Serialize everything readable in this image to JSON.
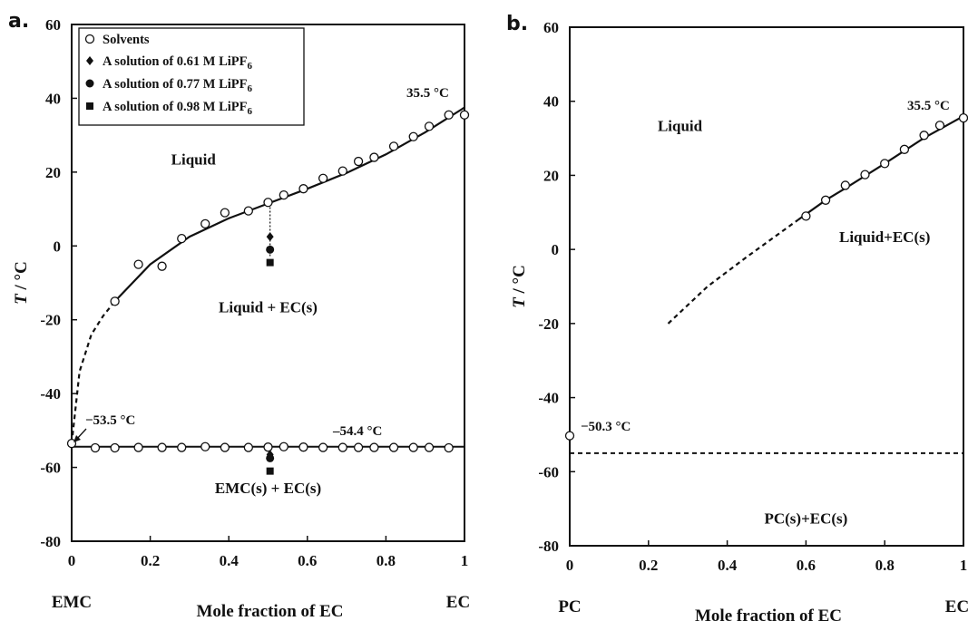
{
  "chart_data": [
    {
      "type": "scatter",
      "panel_label": "a.",
      "ylabel_italic": "T",
      "ylabel_rest": " / °C",
      "xlabel": "Mole fraction of EC",
      "x_end_labels": [
        "EMC",
        "EC"
      ],
      "xlim": [
        0,
        1
      ],
      "ylim": [
        -80,
        60
      ],
      "xticks": [
        "0",
        "0.2",
        "0.4",
        "0.6",
        "0.8",
        "1"
      ],
      "yticks": [
        "-80",
        "-60",
        "-40",
        "-20",
        "0",
        "20",
        "40",
        "60"
      ],
      "legend": {
        "placement": "top-left",
        "entries": [
          {
            "marker": "open-circle",
            "text": "Solvents"
          },
          {
            "marker": "diamond",
            "text": " A solution of 0.61 M LiPF",
            "sub": "6"
          },
          {
            "marker": "filled-circle",
            "text": "A solution of 0.77 M LiPF",
            "sub": "6"
          },
          {
            "marker": "square",
            "text": "A solution of 0.98 M LiPF",
            "sub": "6"
          }
        ]
      },
      "regions": [
        "Liquid",
        "Liquid + EC(s)",
        "EMC(s) + EC(s)"
      ],
      "annotations": [
        "35.5 °C",
        "−53.5 °C",
        "–54.4 °C"
      ],
      "series": [
        {
          "name": "Solvents",
          "marker": "open-circle",
          "liquidus_points": [
            [
              0.11,
              -15
            ],
            [
              0.17,
              -5
            ],
            [
              0.23,
              -5.5
            ],
            [
              0.28,
              2
            ],
            [
              0.34,
              6
            ],
            [
              0.39,
              9
            ],
            [
              0.45,
              9.5
            ],
            [
              0.5,
              11.8
            ],
            [
              0.54,
              13.8
            ],
            [
              0.59,
              15.5
            ],
            [
              0.64,
              18.3
            ],
            [
              0.69,
              20.3
            ],
            [
              0.73,
              22.9
            ],
            [
              0.77,
              24
            ],
            [
              0.82,
              27
            ],
            [
              0.87,
              29.6
            ],
            [
              0.91,
              32.4
            ],
            [
              0.96,
              35.5
            ],
            [
              1.0,
              35.5
            ]
          ],
          "eutectic_points": [
            [
              0,
              -53.5
            ],
            [
              0.06,
              -54.7
            ],
            [
              0.11,
              -54.7
            ],
            [
              0.17,
              -54.6
            ],
            [
              0.23,
              -54.6
            ],
            [
              0.28,
              -54.6
            ],
            [
              0.34,
              -54.4
            ],
            [
              0.39,
              -54.6
            ],
            [
              0.45,
              -54.6
            ],
            [
              0.5,
              -54.5
            ],
            [
              0.54,
              -54.4
            ],
            [
              0.59,
              -54.5
            ],
            [
              0.64,
              -54.6
            ],
            [
              0.69,
              -54.6
            ],
            [
              0.73,
              -54.6
            ],
            [
              0.77,
              -54.6
            ],
            [
              0.82,
              -54.6
            ],
            [
              0.87,
              -54.6
            ],
            [
              0.91,
              -54.6
            ],
            [
              0.96,
              -54.7
            ]
          ]
        },
        {
          "name": "0.61 M LiPF6",
          "marker": "diamond",
          "points": [
            [
              0.505,
              2.5
            ],
            [
              0.505,
              -56.5
            ]
          ]
        },
        {
          "name": "0.77 M LiPF6",
          "marker": "filled-circle",
          "points": [
            [
              0.505,
              -1
            ],
            [
              0.505,
              -57.5
            ]
          ]
        },
        {
          "name": "0.98 M LiPF6",
          "marker": "square",
          "points": [
            [
              0.505,
              -4.5
            ],
            [
              0.505,
              -61
            ]
          ]
        }
      ],
      "liquidus_fit": [
        [
          0.11,
          -15
        ],
        [
          0.2,
          -5
        ],
        [
          0.3,
          2.5
        ],
        [
          0.4,
          7.5
        ],
        [
          0.5,
          11.5
        ],
        [
          0.6,
          15.5
        ],
        [
          0.7,
          19.8
        ],
        [
          0.8,
          24.8
        ],
        [
          0.9,
          30.8
        ],
        [
          1.0,
          37.5
        ]
      ],
      "liquidus_dashed": [
        [
          0,
          -53.5
        ],
        [
          0.02,
          -34
        ],
        [
          0.05,
          -24
        ],
        [
          0.08,
          -19
        ],
        [
          0.11,
          -15
        ]
      ],
      "eutectic_line": [
        [
          0,
          -54.4
        ],
        [
          1,
          -54.4
        ]
      ],
      "dotted_guide": [
        [
          0.505,
          11.5
        ],
        [
          0.505,
          -3
        ]
      ]
    },
    {
      "type": "scatter",
      "panel_label": "b.",
      "ylabel_italic": "T",
      "ylabel_rest": " / °C",
      "xlabel": "Mole fraction of EC",
      "x_end_labels": [
        "PC",
        "EC"
      ],
      "xlim": [
        0,
        1
      ],
      "ylim": [
        -80,
        60
      ],
      "xticks": [
        "0",
        "0.2",
        "0.4",
        "0.6",
        "0.8",
        "1"
      ],
      "yticks": [
        "-80",
        "-60",
        "-40",
        "-20",
        "0",
        "20",
        "40",
        "60"
      ],
      "regions": [
        "Liquid",
        "Liquid+EC(s)",
        "PC(s)+EC(s)"
      ],
      "annotations": [
        "35.5 °C",
        "−50.3 °C"
      ],
      "series": [
        {
          "marker": "open-circle",
          "points": [
            [
              0,
              -50.3
            ],
            [
              0.6,
              9
            ],
            [
              0.65,
              13.3
            ],
            [
              0.7,
              17.3
            ],
            [
              0.75,
              20.2
            ],
            [
              0.8,
              23.2
            ],
            [
              0.85,
              27
            ],
            [
              0.9,
              30.8
            ],
            [
              0.94,
              33.5
            ],
            [
              1.0,
              35.5
            ]
          ]
        }
      ],
      "liquidus_fit": [
        [
          0.58,
          8
        ],
        [
          0.65,
          13.3
        ],
        [
          0.7,
          16.5
        ],
        [
          0.8,
          23.2
        ],
        [
          0.9,
          30.1
        ],
        [
          1.0,
          36
        ]
      ],
      "liquidus_dashed": [
        [
          0.25,
          -20
        ],
        [
          0.35,
          -10
        ],
        [
          0.45,
          -2
        ],
        [
          0.58,
          8
        ]
      ],
      "eutectic_dashed": [
        [
          0,
          -55
        ],
        [
          1,
          -55
        ]
      ]
    }
  ]
}
